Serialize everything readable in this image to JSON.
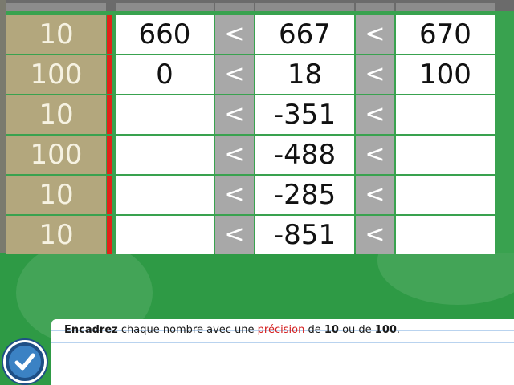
{
  "rows": [
    {
      "precision": "10",
      "lower": "660",
      "sign1": "<",
      "number": "667",
      "sign2": "<",
      "upper": "670"
    },
    {
      "precision": "100",
      "lower": "0",
      "sign1": "<",
      "number": "18",
      "sign2": "<",
      "upper": "100"
    },
    {
      "precision": "10",
      "lower": "",
      "sign1": "<",
      "number": "-351",
      "sign2": "<",
      "upper": ""
    },
    {
      "precision": "100",
      "lower": "",
      "sign1": "<",
      "number": "-488",
      "sign2": "<",
      "upper": ""
    },
    {
      "precision": "10",
      "lower": "",
      "sign1": "<",
      "number": "-285",
      "sign2": "<",
      "upper": ""
    },
    {
      "precision": "10",
      "lower": "",
      "sign1": "<",
      "number": "-851",
      "sign2": "<",
      "upper": ""
    }
  ],
  "instruction": {
    "part1": "Encadrez",
    "part2": " chaque nombre avec une ",
    "part3": "précision",
    "part4": " de ",
    "part5": "10",
    "part6": " ou de ",
    "part7": "100",
    "part8": "."
  },
  "icons": {
    "validate": "checkmark-icon"
  },
  "colors": {
    "background": "#2e9a45",
    "precision_cell": "#b3a77d",
    "divider": "#e2231a",
    "sign_cell": "#a8a8a8",
    "highlight_word": "#d42020",
    "button": "#1e4f86"
  }
}
